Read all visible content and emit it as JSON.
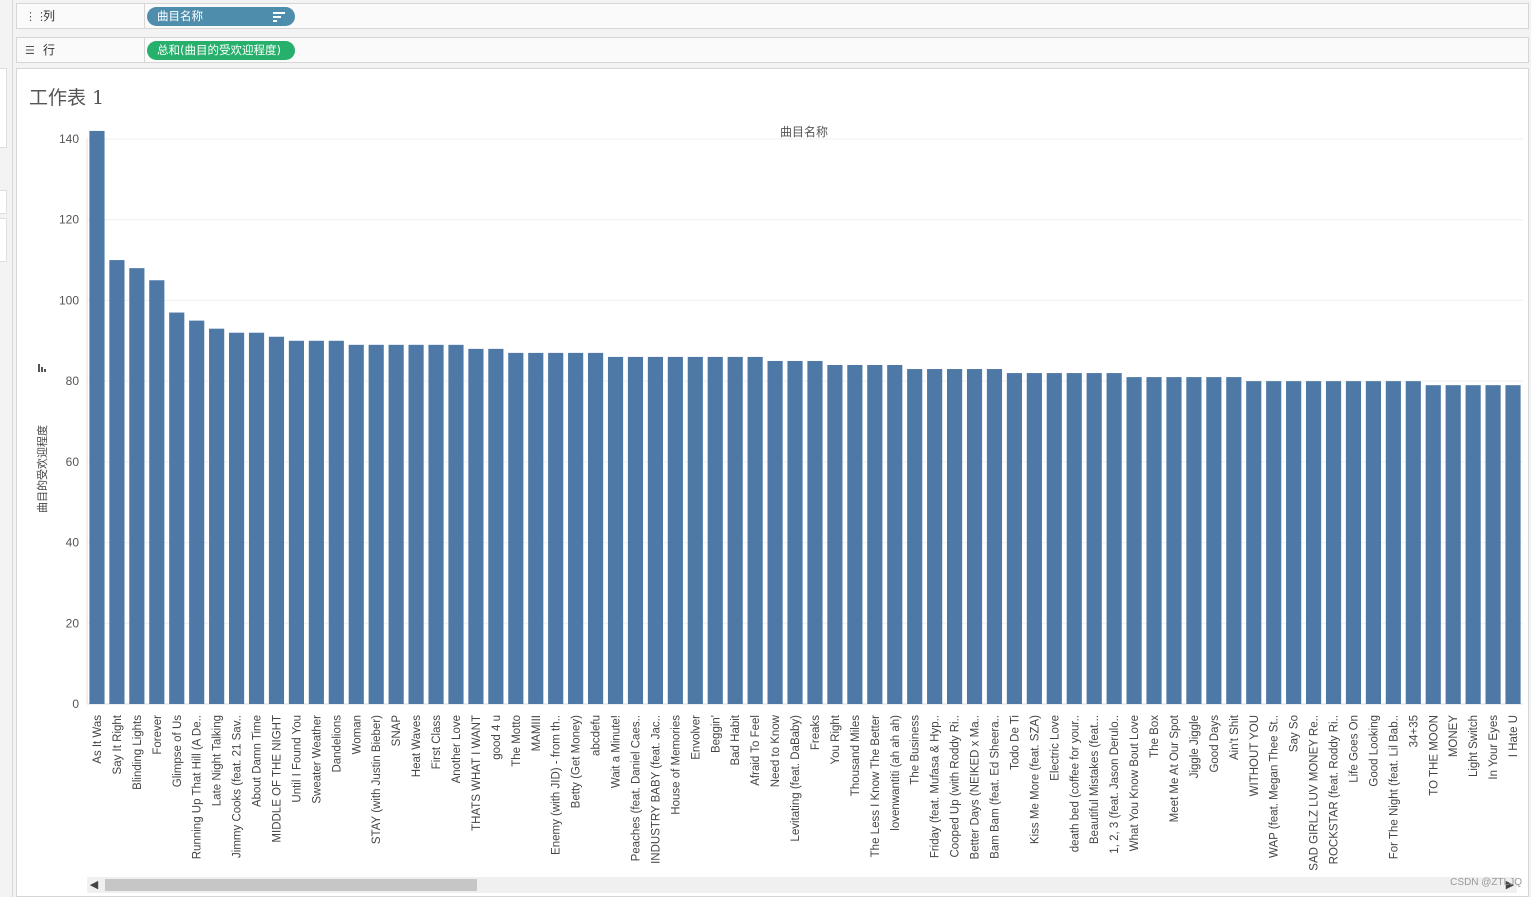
{
  "shelves": {
    "columns": {
      "label": "列",
      "pill": "曲目名称",
      "icon": "columns-icon"
    },
    "rows": {
      "label": "行",
      "pill": "总和(曲目的受欢迎程度)",
      "icon": "rows-icon"
    }
  },
  "sheet": {
    "title": "工作表 1"
  },
  "colors": {
    "bar": "#4e79a7",
    "columns_pill": "#4e8dab",
    "rows_pill": "#27b06c"
  },
  "watermark": "CSDN @ZTLJQ",
  "chart_data": {
    "type": "bar",
    "title": "曲目名称",
    "xlabel": "",
    "ylabel": "曲目的受欢迎程度",
    "ylim": [
      0,
      140
    ],
    "yticks": [
      0,
      20,
      40,
      60,
      80,
      100,
      120,
      140
    ],
    "categories": [
      "As It Was",
      "Say It Right",
      "Blinding Lights",
      "Forever",
      "Glimpse of Us",
      "Running Up That Hill (A De..",
      "Late Night Talking",
      "Jimmy Cooks (feat. 21 Sav..",
      "About Damn Time",
      "MIDDLE OF THE NIGHT",
      "Until I Found You",
      "Sweater Weather",
      "Dandelions",
      "Woman",
      "STAY (with Justin Bieber)",
      "SNAP",
      "Heat Waves",
      "First Class",
      "Another Love",
      "THATS WHAT I WANT",
      "good 4 u",
      "The Motto",
      "MAMIII",
      "Enemy (with JID) - from th..",
      "Betty (Get Money)",
      "abcdefu",
      "Wait a Minute!",
      "Peaches (feat. Daniel Caes..",
      "INDUSTRY BABY (feat. Jac..",
      "House of Memories",
      "Envolver",
      "Beggin'",
      "Bad Habit",
      "Afraid To Feel",
      "Need to Know",
      "Levitating (feat. DaBaby)",
      "Freaks",
      "You Right",
      "Thousand Miles",
      "The Less I Know The Better",
      "lovenwantiti (ah ah ah)",
      "The Business",
      "Friday (feat. Mufasa & Hyp..",
      "Cooped Up (with Roddy Ri..",
      "Better Days (NEIKED x Ma..",
      "Bam Bam (feat. Ed Sheera..",
      "Todo De Ti",
      "Kiss Me More (feat. SZA)",
      "Electric Love",
      "death bed (coffee for your..",
      "Beautiful Mistakes (feat...",
      "1, 2, 3 (feat. Jason Derulo..",
      "What You Know Bout Love",
      "The Box",
      "Meet Me At Our Spot",
      "Jiggle Jiggle",
      "Good Days",
      "Ain't Shit",
      "WITHOUT YOU",
      "WAP (feat. Megan Thee St..",
      "Say So",
      "SAD GIRLZ LUV MONEY Re..",
      "ROCKSTAR (feat. Roddy Ri..",
      "Life Goes On",
      "Good Looking",
      "For The Night (feat. Lil Bab..",
      "34+35",
      "TO THE MOON",
      "MONEY",
      "Light Switch",
      "In Your Eyes",
      "I Hate U"
    ],
    "values": [
      142,
      110,
      108,
      105,
      97,
      95,
      93,
      92,
      92,
      91,
      90,
      90,
      90,
      89,
      89,
      89,
      89,
      89,
      89,
      88,
      88,
      87,
      87,
      87,
      87,
      87,
      86,
      86,
      86,
      86,
      86,
      86,
      86,
      86,
      85,
      85,
      85,
      84,
      84,
      84,
      84,
      83,
      83,
      83,
      83,
      83,
      82,
      82,
      82,
      82,
      82,
      82,
      81,
      81,
      81,
      81,
      81,
      81,
      80,
      80,
      80,
      80,
      80,
      80,
      80,
      80,
      80,
      79,
      79,
      79,
      79,
      79
    ],
    "grid": true,
    "legend": "none"
  }
}
